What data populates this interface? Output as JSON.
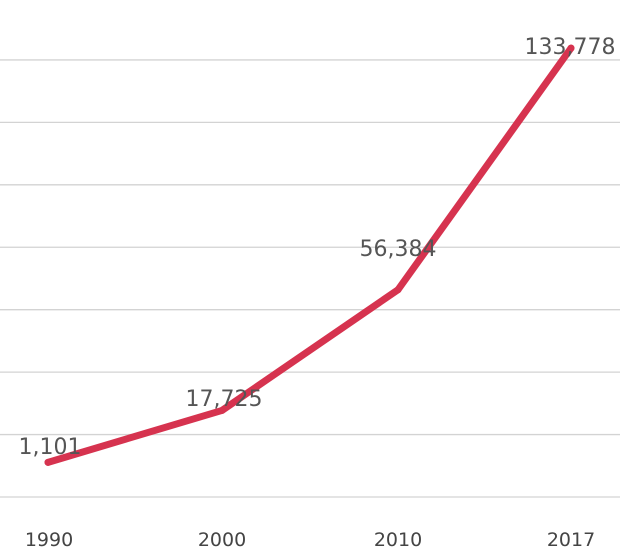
{
  "chart_data": {
    "type": "line",
    "title": "",
    "xlabel": "",
    "ylabel": "",
    "categories": [
      "1990",
      "2000",
      "2010",
      "2017"
    ],
    "x": [
      1990,
      2000,
      2010,
      2017
    ],
    "series": [
      {
        "values": [
          1101,
          17725,
          56384,
          133778
        ],
        "value_labels": [
          "1,101",
          "17,725",
          "56,384",
          "133,778"
        ],
        "color": "#d6334f"
      }
    ],
    "ylim": [
      -10000,
      150000
    ],
    "y_grid_step": 20000,
    "grid": true,
    "legend": "none"
  }
}
